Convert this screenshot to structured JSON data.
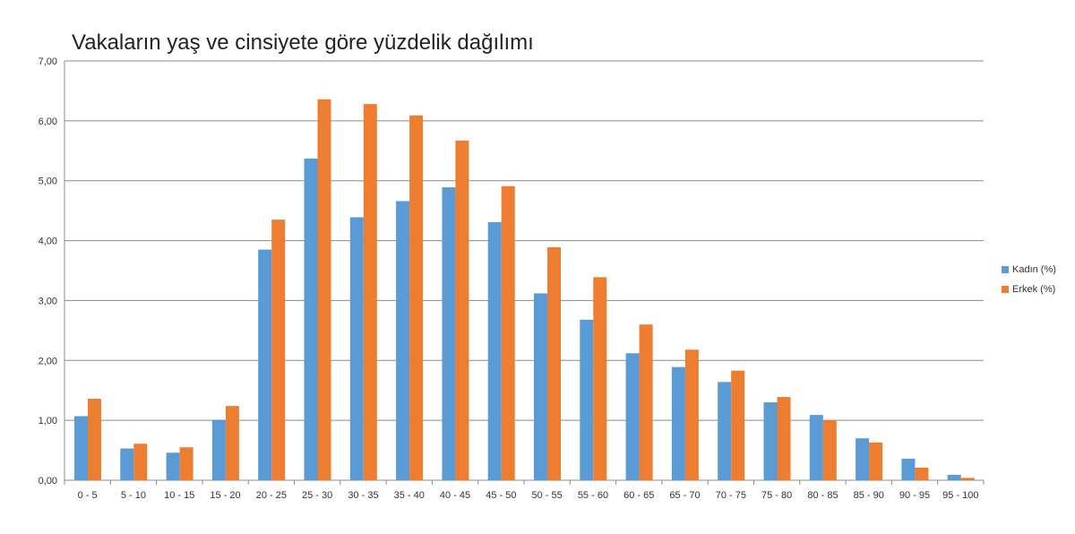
{
  "chart_data": {
    "type": "bar",
    "title": "Vakaların yaş ve cinsiyete göre yüzdelik dağılımı",
    "xlabel": "",
    "ylabel": "",
    "ylim": [
      0,
      7
    ],
    "yticks": [
      "0,00",
      "1,00",
      "2,00",
      "3,00",
      "4,00",
      "5,00",
      "6,00",
      "7,00"
    ],
    "grid": true,
    "legend_position": "right",
    "categories": [
      "0 - 5",
      "5 - 10",
      "10 - 15",
      "15 - 20",
      "20 - 25",
      "25 - 30",
      "30 - 35",
      "35 - 40",
      "40 - 45",
      "45 - 50",
      "50 - 55",
      "55 - 60",
      "60 - 65",
      "65 - 70",
      "70 - 75",
      "75 - 80",
      "80 - 85",
      "85 - 90",
      "90 - 95",
      "95 - 100"
    ],
    "series": [
      {
        "name": "Kadın (%)",
        "color": "#5b9bd5",
        "values": [
          1.07,
          0.53,
          0.46,
          1.01,
          3.85,
          5.37,
          4.39,
          4.66,
          4.89,
          4.31,
          3.12,
          2.68,
          2.12,
          1.89,
          1.64,
          1.3,
          1.09,
          0.7,
          0.36,
          0.09
        ]
      },
      {
        "name": "Erkek (%)",
        "color": "#ed7d31",
        "values": [
          1.36,
          0.61,
          0.55,
          1.24,
          4.35,
          6.36,
          6.28,
          6.09,
          5.67,
          4.91,
          3.89,
          3.39,
          2.6,
          2.18,
          1.83,
          1.39,
          1.0,
          0.63,
          0.21,
          0.04
        ]
      }
    ]
  }
}
